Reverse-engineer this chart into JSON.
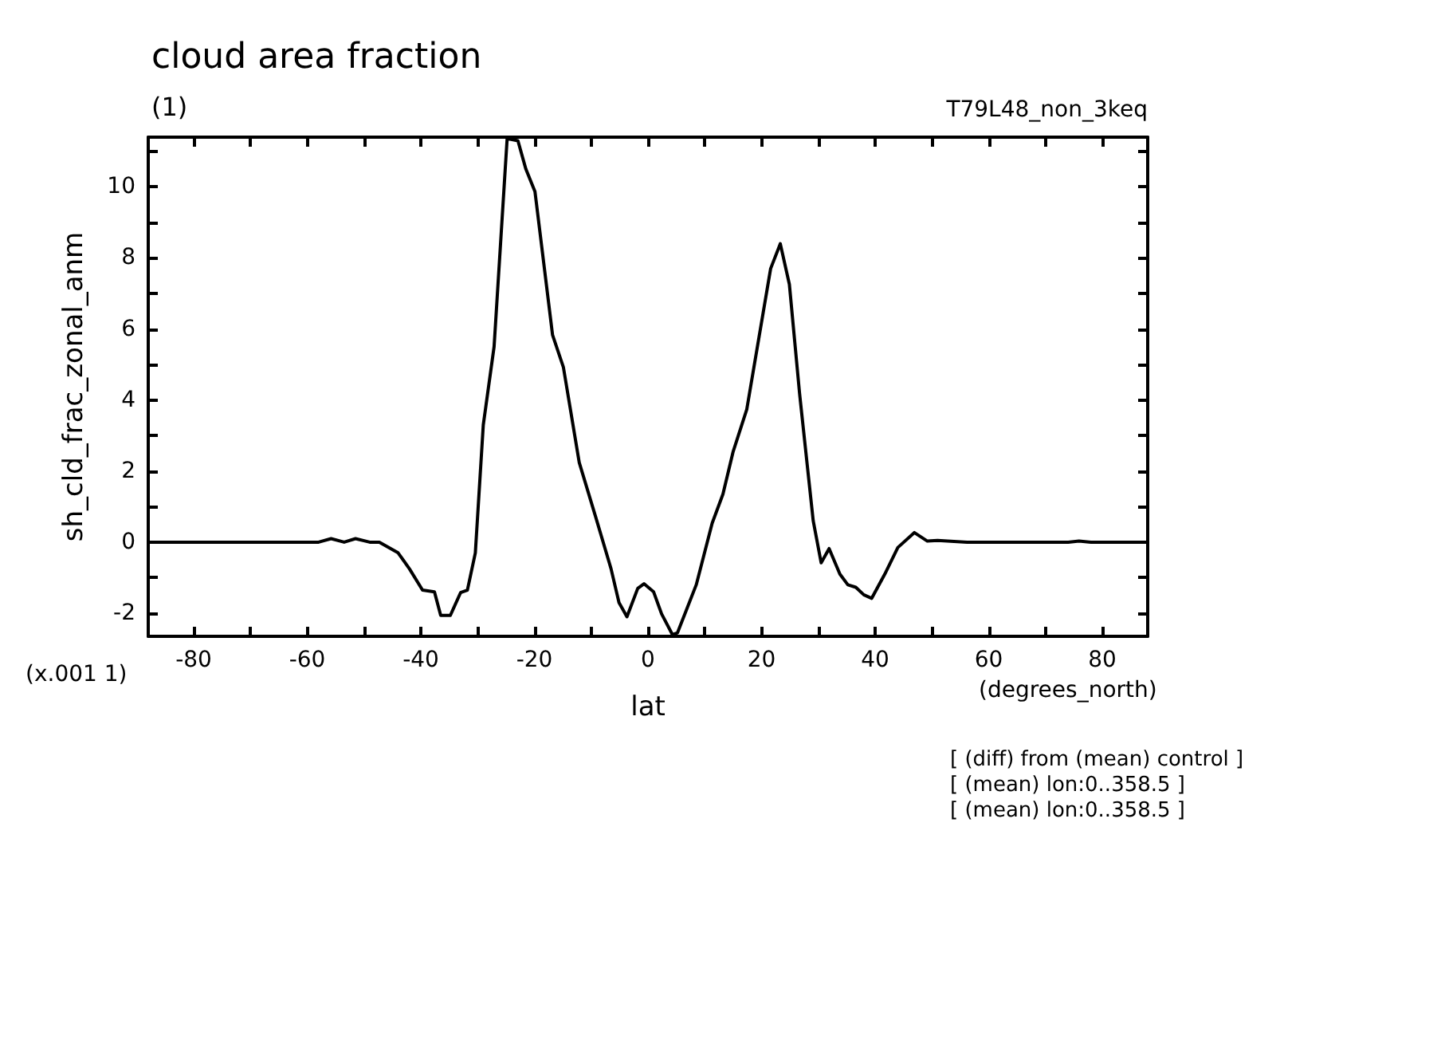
{
  "chart_data": {
    "type": "line",
    "title": "cloud area fraction",
    "subtitle": "(1)",
    "xlabel": "lat",
    "ylabel": "sh_cld_frac_zonal_anm",
    "annotations": [
      "T79L48_non_3keq",
      "(x.001 1)",
      "(degrees_north)",
      "[ (diff) from (mean) control ]",
      "[ (mean) lon:0..358.5 ]",
      "[ (mean) lon:0..358.5 ]"
    ],
    "x": [
      -88,
      -61,
      -58,
      -55.8,
      -53.5,
      -51.5,
      -49,
      -47.3,
      -44,
      -42,
      -39.7,
      -37.6,
      -36.5,
      -34.8,
      -33,
      -31.8,
      -30.4,
      -29,
      -27.1,
      -24.8,
      -22.9,
      -21.5,
      -19.9,
      -16.8,
      -14.9,
      -12.1,
      -9.3,
      -6.5,
      -5.1,
      -3.7,
      -1.8,
      -0.7,
      1,
      2.4,
      4.3,
      5.2,
      8.5,
      11.3,
      13.2,
      15,
      17.4,
      21.6,
      23.3,
      24.9,
      26.7,
      29.1,
      30.5,
      31.9,
      33.8,
      35.2,
      36.6,
      38,
      39.4,
      41.7,
      44,
      46.9,
      49.2,
      51,
      56.2,
      74,
      75.9,
      78,
      88
    ],
    "series": [
      {
        "color": "#000000",
        "values": [
          0,
          0,
          0,
          0.1,
          0,
          0.1,
          0,
          0,
          -0.3,
          -0.75,
          -1.35,
          -1.4,
          -2.06,
          -2.06,
          -1.42,
          -1.35,
          -0.3,
          3.3,
          5.5,
          11.36,
          11.3,
          10.5,
          9.87,
          5.83,
          4.93,
          2.24,
          0.76,
          -0.75,
          -1.7,
          -2.1,
          -1.3,
          -1.17,
          -1.4,
          -2.02,
          -2.6,
          -2.55,
          -1.2,
          0.53,
          1.35,
          2.55,
          3.74,
          7.7,
          8.4,
          7.26,
          4.18,
          0.6,
          -0.58,
          -0.18,
          -0.9,
          -1.2,
          -1.27,
          -1.48,
          -1.58,
          -0.9,
          -0.15,
          0.27,
          0.03,
          0.05,
          0,
          0,
          0.03,
          0,
          0
        ]
      }
    ],
    "xlim": [
      -88,
      88
    ],
    "xticks": [
      {
        "value": -80,
        "label": "-80"
      },
      {
        "value": -70,
        "label": null
      },
      {
        "value": -60,
        "label": "-60"
      },
      {
        "value": -50,
        "label": null
      },
      {
        "value": -40,
        "label": "-40"
      },
      {
        "value": -30,
        "label": null
      },
      {
        "value": -20,
        "label": "-20"
      },
      {
        "value": -10,
        "label": null
      },
      {
        "value": 0,
        "label": "0"
      },
      {
        "value": 10,
        "label": null
      },
      {
        "value": 20,
        "label": "20"
      },
      {
        "value": 30,
        "label": null
      },
      {
        "value": 40,
        "label": "40"
      },
      {
        "value": 50,
        "label": null
      },
      {
        "value": 60,
        "label": "60"
      },
      {
        "value": 70,
        "label": null
      },
      {
        "value": 80,
        "label": "80"
      }
    ],
    "ylim": [
      -2.65,
      11.4
    ],
    "yticks": [
      {
        "value": -2,
        "label": "-2"
      },
      {
        "value": -1,
        "label": null
      },
      {
        "value": 0,
        "label": "0"
      },
      {
        "value": 1,
        "label": null
      },
      {
        "value": 2,
        "label": "2"
      },
      {
        "value": 3,
        "label": null
      },
      {
        "value": 4,
        "label": "4"
      },
      {
        "value": 5,
        "label": null
      },
      {
        "value": 6,
        "label": "6"
      },
      {
        "value": 7,
        "label": null
      },
      {
        "value": 8,
        "label": "8"
      },
      {
        "value": 9,
        "label": null
      },
      {
        "value": 10,
        "label": "10"
      },
      {
        "value": 11,
        "label": null
      }
    ],
    "grid": false,
    "marker": "none",
    "line_style": "solid"
  }
}
